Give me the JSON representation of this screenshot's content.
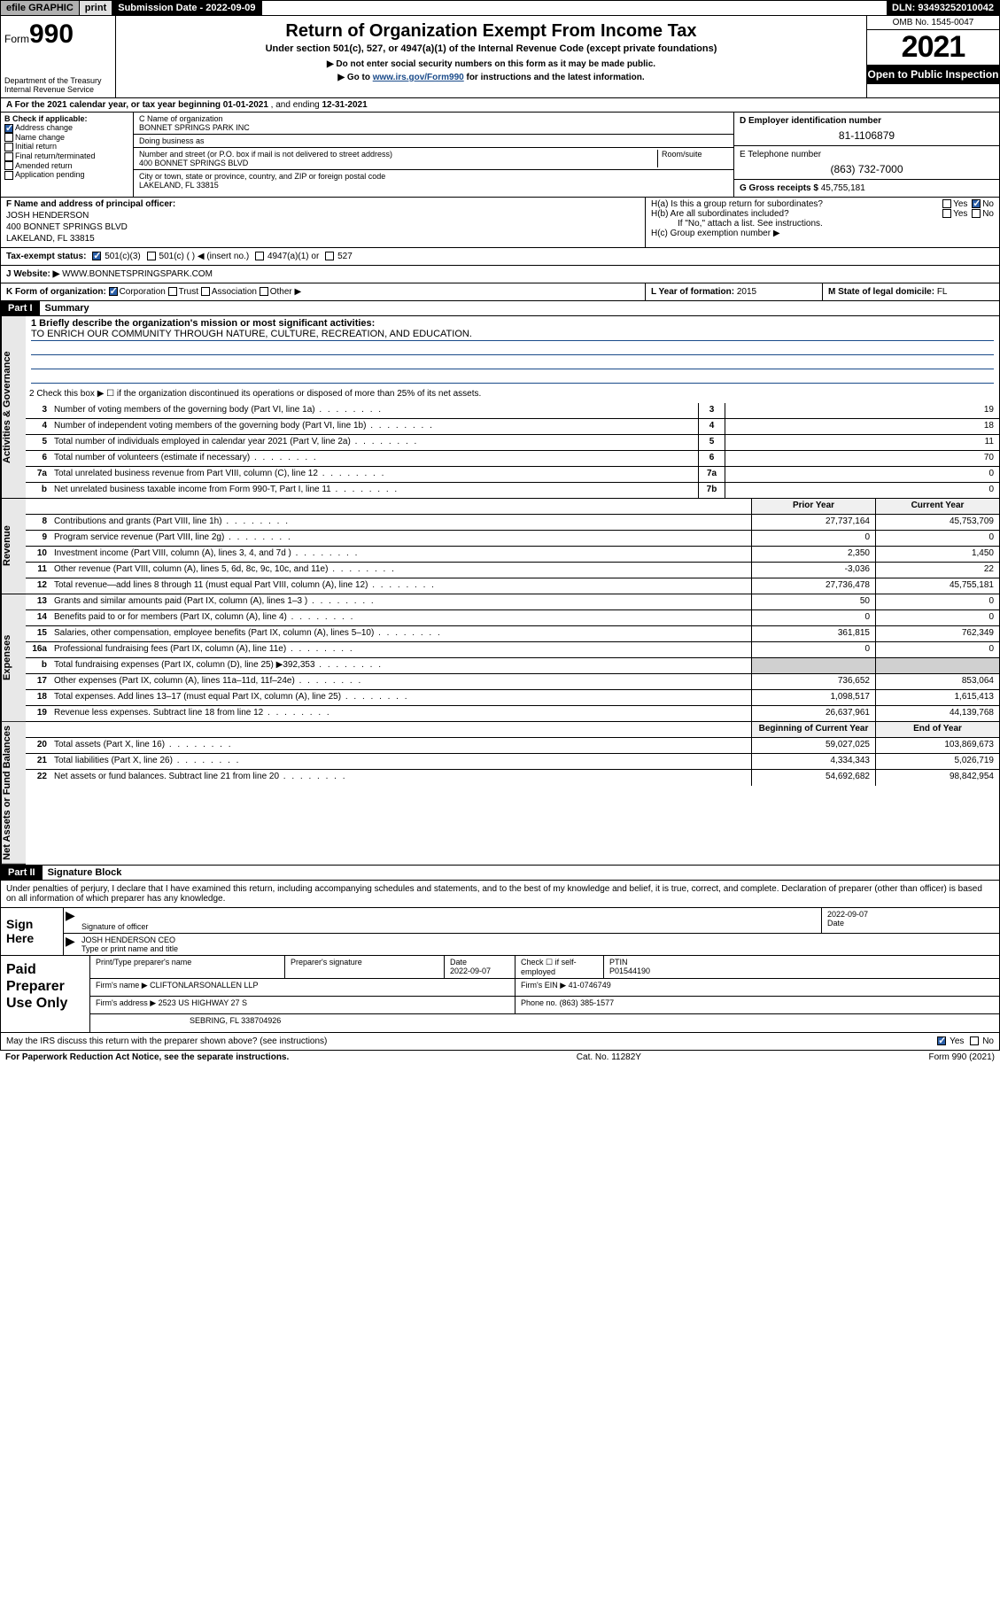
{
  "topbar": {
    "efile": "efile GRAPHIC",
    "print": "print",
    "subdate_label": "Submission Date - 2022-09-09",
    "dln": "DLN: 93493252010042"
  },
  "header": {
    "form_prefix": "Form",
    "form_num": "990",
    "title": "Return of Organization Exempt From Income Tax",
    "subtitle": "Under section 501(c), 527, or 4947(a)(1) of the Internal Revenue Code (except private foundations)",
    "note1": "▶ Do not enter social security numbers on this form as it may be made public.",
    "note2_pre": "▶ Go to ",
    "note2_link": "www.irs.gov/Form990",
    "note2_post": " for instructions and the latest information.",
    "dept": "Department of the Treasury\nInternal Revenue Service",
    "omb": "OMB No. 1545-0047",
    "year": "2021",
    "inspection": "Open to Public Inspection"
  },
  "sectA": {
    "text_pre": "A For the 2021 calendar year, or tax year beginning ",
    "begin": "01-01-2021",
    "text_mid": " , and ending ",
    "end": "12-31-2021"
  },
  "sectB": {
    "label": "B Check if applicable:",
    "items": [
      "Address change",
      "Name change",
      "Initial return",
      "Final return/terminated",
      "Amended return",
      "Application pending"
    ],
    "checked_idx": 0
  },
  "sectC": {
    "name_label": "C Name of organization",
    "name": "BONNET SPRINGS PARK INC",
    "dba_label": "Doing business as",
    "dba": "",
    "addr_label": "Number and street (or P.O. box if mail is not delivered to street address)",
    "room_label": "Room/suite",
    "addr": "400 BONNET SPRINGS BLVD",
    "city_label": "City or town, state or province, country, and ZIP or foreign postal code",
    "city": "LAKELAND, FL  33815"
  },
  "sectD": {
    "label": "D Employer identification number",
    "value": "81-1106879"
  },
  "sectE": {
    "label": "E Telephone number",
    "value": "(863) 732-7000"
  },
  "sectG": {
    "label": "G Gross receipts $",
    "value": "45,755,181"
  },
  "sectF": {
    "label": "F Name and address of principal officer:",
    "name": "JOSH HENDERSON",
    "addr1": "400 BONNET SPRINGS BLVD",
    "addr2": "LAKELAND, FL  33815"
  },
  "sectH": {
    "a_label": "H(a)  Is this a group return for subordinates?",
    "a_no": true,
    "b_label": "H(b)  Are all subordinates included?",
    "b_note": "If \"No,\" attach a list. See instructions.",
    "c_label": "H(c)  Group exemption number ▶"
  },
  "sectI": {
    "label": "Tax-exempt status:",
    "opts": [
      "501(c)(3)",
      "501(c) (  ) ◀ (insert no.)",
      "4947(a)(1) or",
      "527"
    ],
    "checked_idx": 0
  },
  "sectJ": {
    "label": "J Website: ▶",
    "value": "WWW.BONNETSPRINGSPARK.COM"
  },
  "sectK": {
    "label": "K Form of organization:",
    "opts": [
      "Corporation",
      "Trust",
      "Association",
      "Other ▶"
    ],
    "checked_idx": 0
  },
  "sectL": {
    "label": "L Year of formation:",
    "value": "2015"
  },
  "sectM": {
    "label": "M State of legal domicile:",
    "value": "FL"
  },
  "part1": {
    "label": "Part I",
    "title": "Summary"
  },
  "summary": {
    "mission_label": "1  Briefly describe the organization's mission or most significant activities:",
    "mission": "TO ENRICH OUR COMMUNITY THROUGH NATURE, CULTURE, RECREATION, AND EDUCATION.",
    "line2": "2  Check this box ▶ ☐ if the organization discontinued its operations or disposed of more than 25% of its net assets.",
    "governance_rows": [
      {
        "n": "3",
        "t": "Number of voting members of the governing body (Part VI, line 1a)",
        "box": "3",
        "v": "19"
      },
      {
        "n": "4",
        "t": "Number of independent voting members of the governing body (Part VI, line 1b)",
        "box": "4",
        "v": "18"
      },
      {
        "n": "5",
        "t": "Total number of individuals employed in calendar year 2021 (Part V, line 2a)",
        "box": "5",
        "v": "11"
      },
      {
        "n": "6",
        "t": "Total number of volunteers (estimate if necessary)",
        "box": "6",
        "v": "70"
      },
      {
        "n": "7a",
        "t": "Total unrelated business revenue from Part VIII, column (C), line 12",
        "box": "7a",
        "v": "0"
      },
      {
        "n": "b",
        "t": "Net unrelated business taxable income from Form 990-T, Part I, line 11",
        "box": "7b",
        "v": "0"
      }
    ],
    "col_hdr_prior": "Prior Year",
    "col_hdr_current": "Current Year",
    "revenue_rows": [
      {
        "n": "8",
        "t": "Contributions and grants (Part VIII, line 1h)",
        "p": "27,737,164",
        "c": "45,753,709"
      },
      {
        "n": "9",
        "t": "Program service revenue (Part VIII, line 2g)",
        "p": "0",
        "c": "0"
      },
      {
        "n": "10",
        "t": "Investment income (Part VIII, column (A), lines 3, 4, and 7d )",
        "p": "2,350",
        "c": "1,450"
      },
      {
        "n": "11",
        "t": "Other revenue (Part VIII, column (A), lines 5, 6d, 8c, 9c, 10c, and 11e)",
        "p": "-3,036",
        "c": "22"
      },
      {
        "n": "12",
        "t": "Total revenue—add lines 8 through 11 (must equal Part VIII, column (A), line 12)",
        "p": "27,736,478",
        "c": "45,755,181"
      }
    ],
    "expense_rows": [
      {
        "n": "13",
        "t": "Grants and similar amounts paid (Part IX, column (A), lines 1–3 )",
        "p": "50",
        "c": "0"
      },
      {
        "n": "14",
        "t": "Benefits paid to or for members (Part IX, column (A), line 4)",
        "p": "0",
        "c": "0"
      },
      {
        "n": "15",
        "t": "Salaries, other compensation, employee benefits (Part IX, column (A), lines 5–10)",
        "p": "361,815",
        "c": "762,349"
      },
      {
        "n": "16a",
        "t": "Professional fundraising fees (Part IX, column (A), line 11e)",
        "p": "0",
        "c": "0"
      },
      {
        "n": "b",
        "t": "Total fundraising expenses (Part IX, column (D), line 25) ▶392,353",
        "p": "",
        "c": "",
        "shade": true
      },
      {
        "n": "17",
        "t": "Other expenses (Part IX, column (A), lines 11a–11d, 11f–24e)",
        "p": "736,652",
        "c": "853,064"
      },
      {
        "n": "18",
        "t": "Total expenses. Add lines 13–17 (must equal Part IX, column (A), line 25)",
        "p": "1,098,517",
        "c": "1,615,413"
      },
      {
        "n": "19",
        "t": "Revenue less expenses. Subtract line 18 from line 12",
        "p": "26,637,961",
        "c": "44,139,768"
      }
    ],
    "col_hdr_begin": "Beginning of Current Year",
    "col_hdr_end": "End of Year",
    "netasset_rows": [
      {
        "n": "20",
        "t": "Total assets (Part X, line 16)",
        "p": "59,027,025",
        "c": "103,869,673"
      },
      {
        "n": "21",
        "t": "Total liabilities (Part X, line 26)",
        "p": "4,334,343",
        "c": "5,026,719"
      },
      {
        "n": "22",
        "t": "Net assets or fund balances. Subtract line 21 from line 20",
        "p": "54,692,682",
        "c": "98,842,954"
      }
    ],
    "vtabs": [
      "Activities & Governance",
      "Revenue",
      "Expenses",
      "Net Assets or Fund Balances"
    ]
  },
  "part2": {
    "label": "Part II",
    "title": "Signature Block"
  },
  "sig": {
    "declaration": "Under penalties of perjury, I declare that I have examined this return, including accompanying schedules and statements, and to the best of my knowledge and belief, it is true, correct, and complete. Declaration of preparer (other than officer) is based on all information of which preparer has any knowledge.",
    "sign_here": "Sign Here",
    "sig_officer_label": "Signature of officer",
    "date": "2022-09-07",
    "date_label": "Date",
    "name_title": "JOSH HENDERSON CEO",
    "name_title_label": "Type or print name and title"
  },
  "paid": {
    "label": "Paid Preparer Use Only",
    "hdr": [
      "Print/Type preparer's name",
      "Preparer's signature",
      "Date",
      "Check ☐ if self-employed",
      "PTIN"
    ],
    "r1": [
      "",
      "",
      "2022-09-07",
      "",
      "P01544190"
    ],
    "firm_name_label": "Firm's name   ▶",
    "firm_name": "CLIFTONLARSONALLEN LLP",
    "firm_ein_label": "Firm's EIN ▶",
    "firm_ein": "41-0746749",
    "firm_addr_label": "Firm's address ▶",
    "firm_addr1": "2523 US HIGHWAY 27 S",
    "firm_addr2": "SEBRING, FL  338704926",
    "phone_label": "Phone no.",
    "phone": "(863) 385-1577"
  },
  "discuss": {
    "text": "May the IRS discuss this return with the preparer shown above? (see instructions)",
    "yes": true
  },
  "footer": {
    "left": "For Paperwork Reduction Act Notice, see the separate instructions.",
    "mid": "Cat. No. 11282Y",
    "right": "Form 990 (2021)"
  }
}
